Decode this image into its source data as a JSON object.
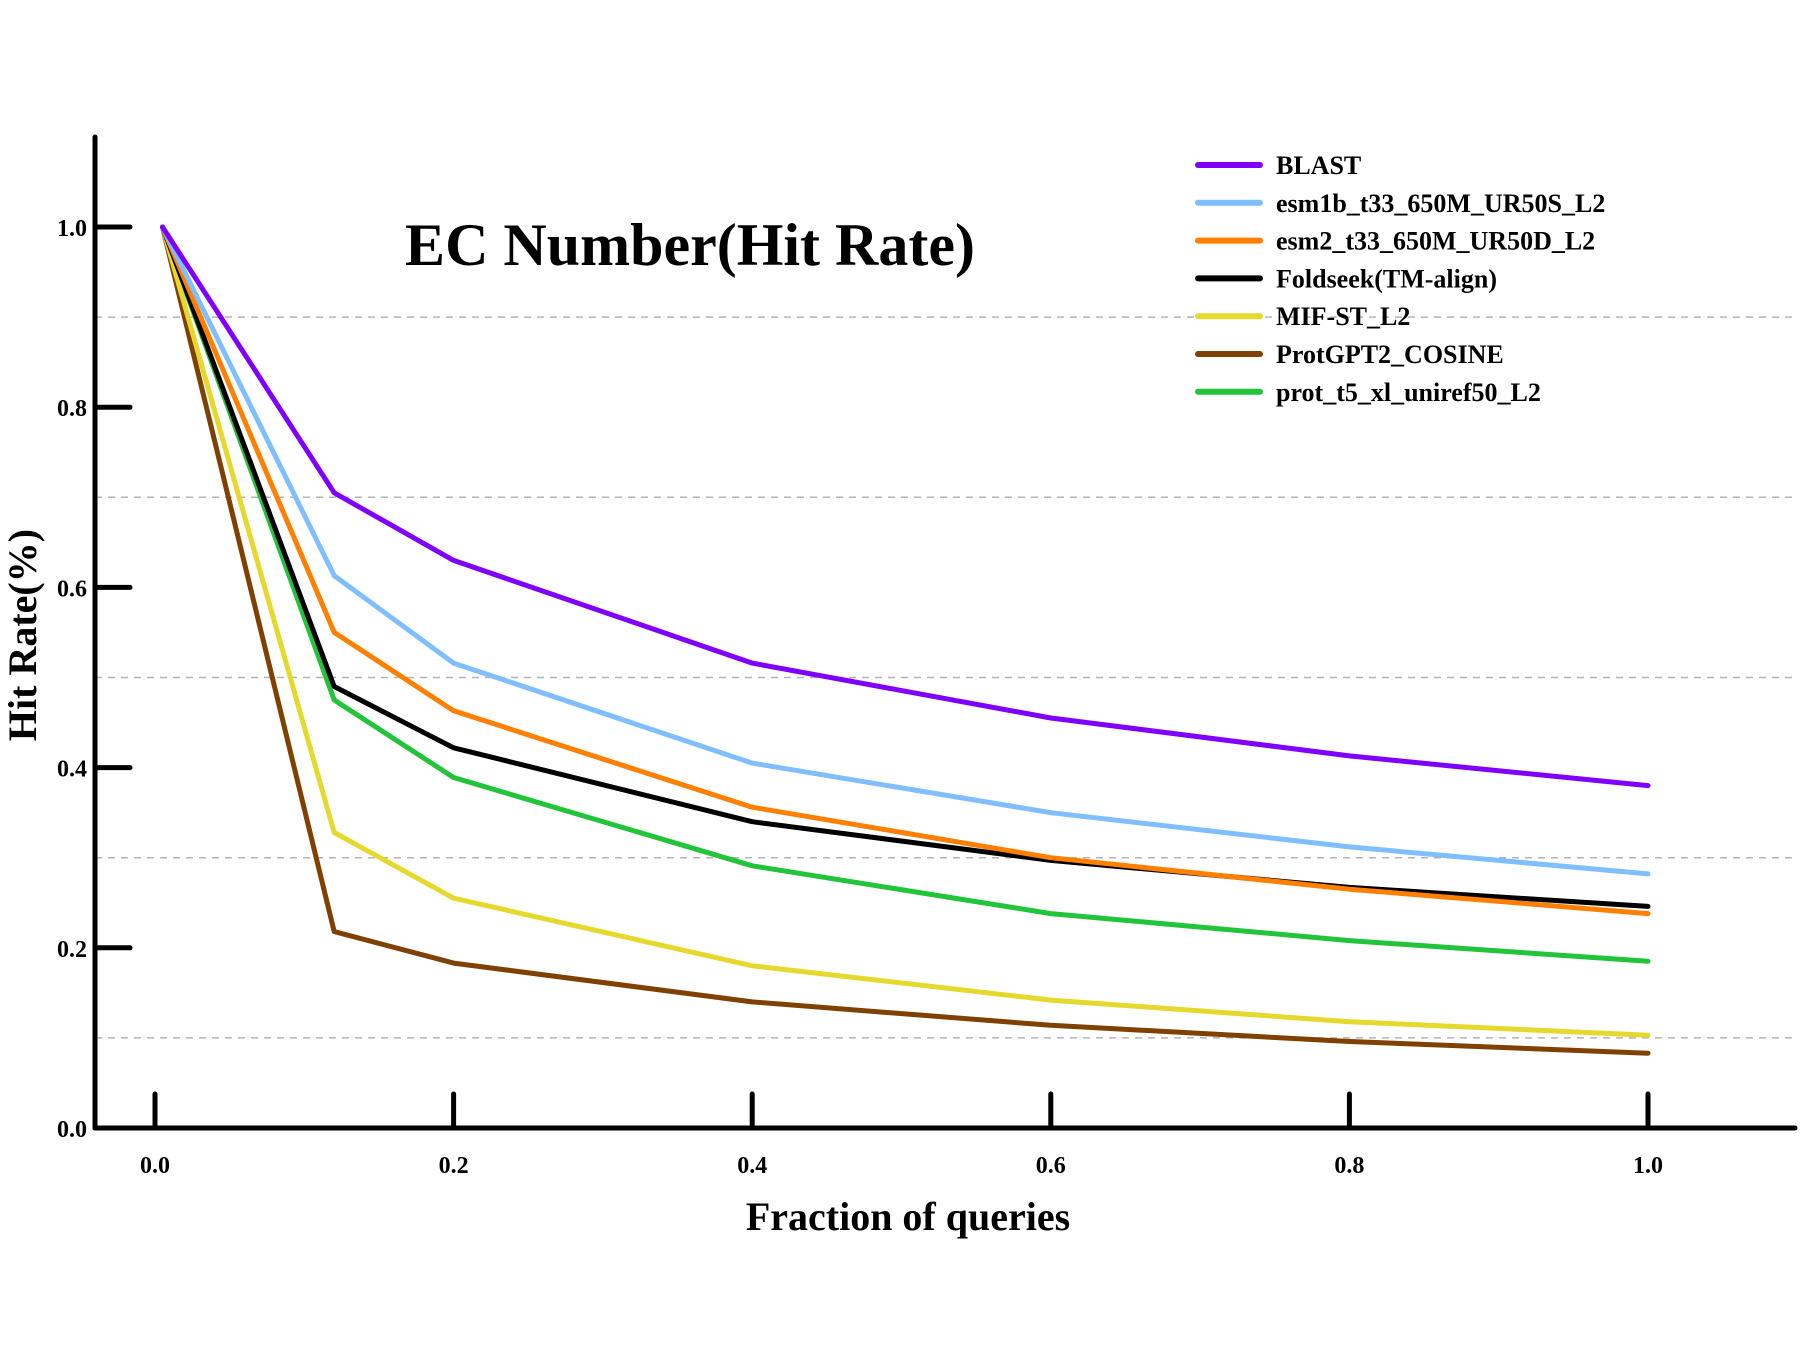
{
  "chart_data": {
    "type": "line",
    "title": "EC Number(Hit Rate)",
    "xlabel": "Fraction of queries",
    "ylabel": "Hit Rate(%)",
    "xlim": [
      -0.07,
      1.1
    ],
    "ylim": [
      0,
      1.1
    ],
    "x_ticks": [
      0.0,
      0.2,
      0.4,
      0.6,
      0.8,
      1.0
    ],
    "x_tick_labels": [
      "0.0",
      "0.2",
      "0.4",
      "0.6",
      "0.8",
      "1.0"
    ],
    "y_ticks": [
      0.0,
      0.2,
      0.4,
      0.6,
      0.8,
      1.0
    ],
    "y_tick_labels": [
      "0.0",
      "0.2",
      "0.4",
      "0.6",
      "0.8",
      "1.0"
    ],
    "grid_y": [
      0.1,
      0.3,
      0.5,
      0.7,
      0.9
    ],
    "grid_style": "dashed-horizontal",
    "legend_position": "top-right",
    "x": [
      0.005,
      0.12,
      0.2,
      0.4,
      0.6,
      0.8,
      1.0
    ],
    "series": [
      {
        "name": "BLAST",
        "color": "#8000ff",
        "values": [
          1.0,
          0.705,
          0.63,
          0.516,
          0.455,
          0.413,
          0.38
        ]
      },
      {
        "name": "esm1b_t33_650M_UR50S_L2",
        "color": "#80bfff",
        "values": [
          1.0,
          0.613,
          0.516,
          0.405,
          0.35,
          0.312,
          0.282
        ]
      },
      {
        "name": "esm2_t33_650M_UR50D_L2",
        "color": "#ff8000",
        "values": [
          1.0,
          0.55,
          0.463,
          0.356,
          0.3,
          0.265,
          0.238
        ]
      },
      {
        "name": "Foldseek(TM-align)",
        "color": "#000000",
        "values": [
          1.0,
          0.49,
          0.422,
          0.34,
          0.297,
          0.267,
          0.246
        ]
      },
      {
        "name": "MIF-ST_L2",
        "color": "#e6d92e",
        "values": [
          1.0,
          0.328,
          0.255,
          0.18,
          0.142,
          0.118,
          0.103
        ]
      },
      {
        "name": "ProtGPT2_COSINE",
        "color": "#804000",
        "values": [
          1.0,
          0.218,
          0.183,
          0.14,
          0.114,
          0.096,
          0.083
        ]
      },
      {
        "name": "prot_t5_xl_uniref50_L2",
        "color": "#22c43a",
        "values": [
          1.0,
          0.475,
          0.389,
          0.291,
          0.238,
          0.208,
          0.185
        ]
      }
    ]
  }
}
